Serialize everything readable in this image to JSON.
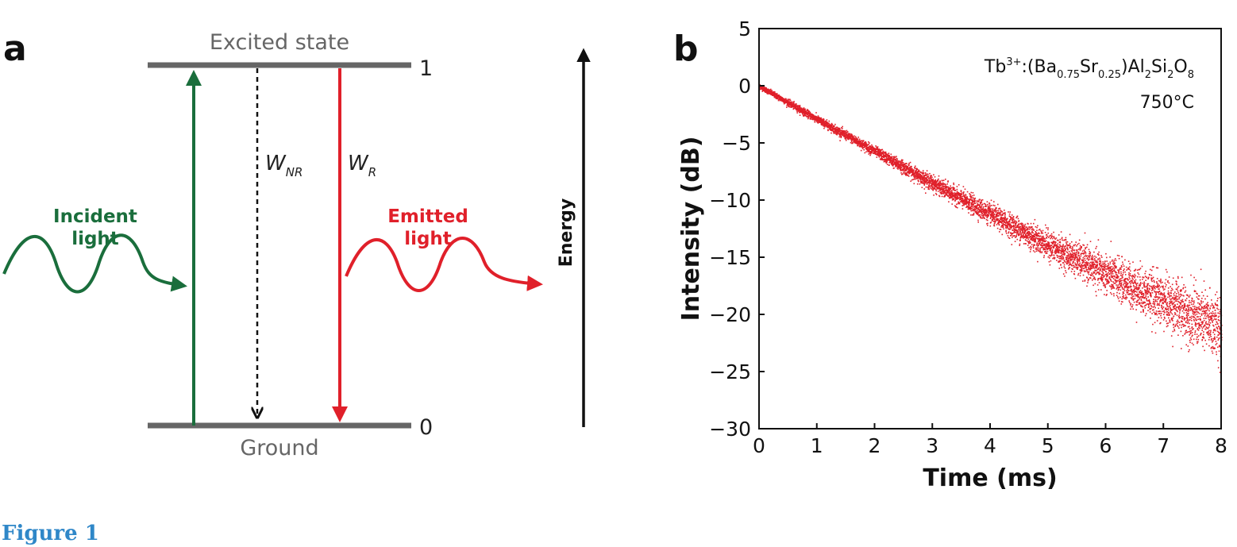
{
  "caption": "Figure 1",
  "panel_a": {
    "letter": "a",
    "excited_label": "Excited state",
    "ground_label": "Ground",
    "level_top": "1",
    "level_bottom": "0",
    "wnr_main": "W",
    "wnr_sub": "NR",
    "wr_main": "W",
    "wr_sub": "R",
    "incident_line1": "Incident",
    "incident_line2": "light",
    "emitted_line1": "Emitted",
    "emitted_line2": "light",
    "energy_label": "Energy",
    "colors": {
      "level": "#666666",
      "absorb": "#1a6e3c",
      "emit": "#e0202a",
      "nonrad": "#111111"
    }
  },
  "panel_b": {
    "letter": "b",
    "annotation": {
      "formula_parts": [
        "Tb",
        "3+",
        ":(Ba",
        "0.75",
        "Sr",
        "0.25",
        ")Al",
        "2",
        "Si",
        "2",
        "O",
        "8"
      ],
      "temperature": "750°C"
    }
  },
  "chart_data": {
    "type": "scatter",
    "title": "",
    "xlabel": "Time (ms)",
    "ylabel": "Intensity (dB)",
    "xlim": [
      0,
      8
    ],
    "ylim": [
      -30,
      5
    ],
    "xticks": [
      "0",
      "1",
      "2",
      "3",
      "4",
      "5",
      "6",
      "7",
      "8"
    ],
    "yticks": [
      "5",
      "0",
      "−5",
      "−10",
      "−15",
      "−20",
      "−25",
      "−30"
    ],
    "grid": false,
    "legend": "none",
    "series": [
      {
        "color": "#e0202a",
        "trend_x": [
          0,
          1,
          2,
          3,
          4,
          5,
          6,
          7,
          8
        ],
        "trend_y": [
          0,
          -2.9,
          -5.7,
          -8.5,
          -11.2,
          -13.9,
          -16.4,
          -18.8,
          -21.2
        ],
        "spread_db": [
          0.2,
          0.3,
          0.4,
          0.6,
          0.8,
          1.1,
          1.5,
          2.0,
          2.6
        ]
      }
    ]
  }
}
